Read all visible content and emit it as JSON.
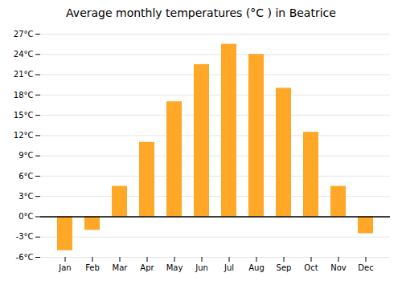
{
  "chart_data": {
    "type": "bar",
    "title": "Average monthly temperatures (°C ) in Beatrice",
    "categories": [
      "Jan",
      "Feb",
      "Mar",
      "Apr",
      "May",
      "Jun",
      "Jul",
      "Aug",
      "Sep",
      "Oct",
      "Nov",
      "Dec"
    ],
    "values": [
      -5.0,
      -2.0,
      4.5,
      11.0,
      17.0,
      22.5,
      25.5,
      24.0,
      19.0,
      12.5,
      4.5,
      -2.5
    ],
    "color": "#FFA726",
    "ylim": [
      -6,
      27
    ],
    "yticks": [
      {
        "value": -6,
        "label": "-6°C"
      },
      {
        "value": -3,
        "label": "-3°C"
      },
      {
        "value": 0,
        "label": "0°C"
      },
      {
        "value": 3,
        "label": "3°C"
      },
      {
        "value": 6,
        "label": "6°C"
      },
      {
        "value": 9,
        "label": "9°C"
      },
      {
        "value": 12,
        "label": "12°C"
      },
      {
        "value": 15,
        "label": "15°C"
      },
      {
        "value": 18,
        "label": "18°C"
      },
      {
        "value": 21,
        "label": "21°C"
      },
      {
        "value": 24,
        "label": "24°C"
      },
      {
        "value": 27,
        "label": "27°C"
      }
    ],
    "grid": true
  }
}
